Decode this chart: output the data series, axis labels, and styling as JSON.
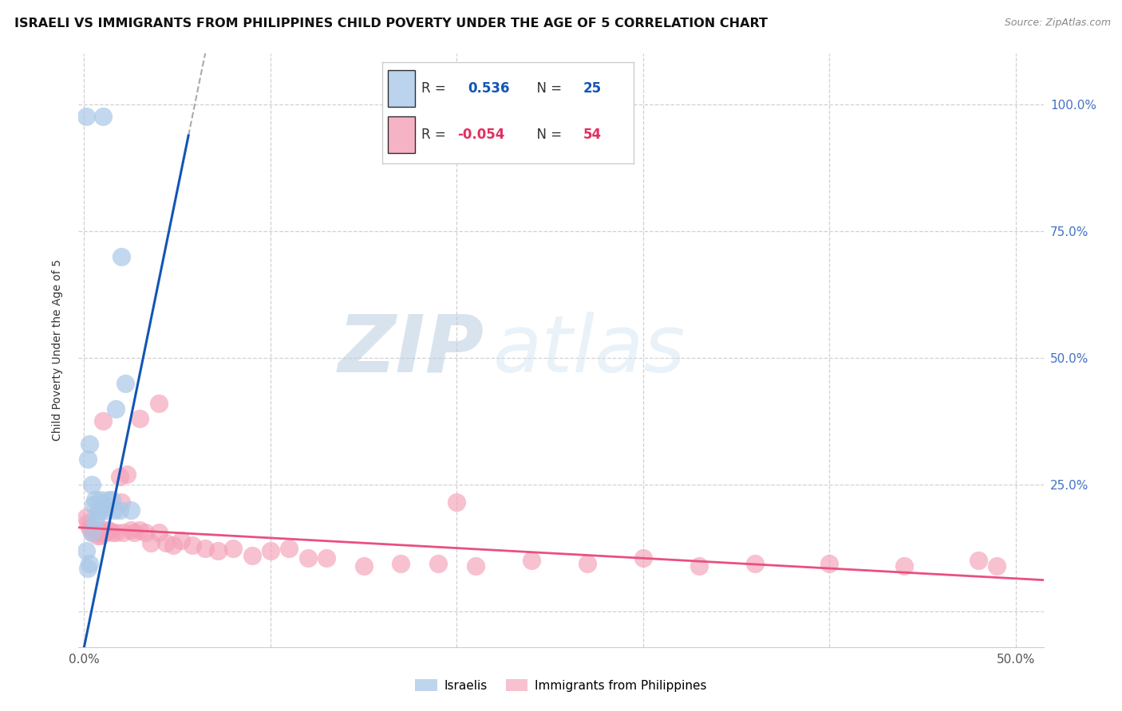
{
  "title": "ISRAELI VS IMMIGRANTS FROM PHILIPPINES CHILD POVERTY UNDER THE AGE OF 5 CORRELATION CHART",
  "source": "Source: ZipAtlas.com",
  "ylabel": "Child Poverty Under the Age of 5",
  "xlim": [
    -0.003,
    0.515
  ],
  "ylim": [
    -0.07,
    1.1
  ],
  "legend_blue_r": "0.536",
  "legend_blue_n": "25",
  "legend_pink_r": "-0.054",
  "legend_pink_n": "54",
  "israelis_x": [
    0.001,
    0.01,
    0.02,
    0.003,
    0.002,
    0.004,
    0.005,
    0.006,
    0.007,
    0.008,
    0.009,
    0.011,
    0.013,
    0.015,
    0.017,
    0.019,
    0.022,
    0.025,
    0.001,
    0.002,
    0.003,
    0.004,
    0.006,
    0.012,
    0.016
  ],
  "israelis_y": [
    0.975,
    0.975,
    0.7,
    0.33,
    0.3,
    0.25,
    0.21,
    0.22,
    0.19,
    0.2,
    0.22,
    0.21,
    0.22,
    0.22,
    0.4,
    0.2,
    0.45,
    0.2,
    0.12,
    0.085,
    0.095,
    0.155,
    0.18,
    0.2,
    0.2
  ],
  "philippines_x": [
    0.001,
    0.002,
    0.003,
    0.004,
    0.005,
    0.006,
    0.007,
    0.008,
    0.009,
    0.01,
    0.011,
    0.012,
    0.013,
    0.015,
    0.017,
    0.019,
    0.021,
    0.023,
    0.025,
    0.027,
    0.03,
    0.033,
    0.036,
    0.04,
    0.044,
    0.048,
    0.052,
    0.058,
    0.065,
    0.072,
    0.08,
    0.09,
    0.1,
    0.11,
    0.12,
    0.13,
    0.15,
    0.17,
    0.19,
    0.21,
    0.24,
    0.27,
    0.3,
    0.33,
    0.36,
    0.4,
    0.44,
    0.48,
    0.01,
    0.02,
    0.03,
    0.04,
    0.2,
    0.49
  ],
  "philippines_y": [
    0.185,
    0.175,
    0.165,
    0.155,
    0.16,
    0.155,
    0.15,
    0.16,
    0.15,
    0.155,
    0.155,
    0.16,
    0.16,
    0.155,
    0.155,
    0.265,
    0.155,
    0.27,
    0.16,
    0.155,
    0.16,
    0.155,
    0.135,
    0.155,
    0.135,
    0.13,
    0.14,
    0.13,
    0.125,
    0.12,
    0.125,
    0.11,
    0.12,
    0.125,
    0.105,
    0.105,
    0.09,
    0.095,
    0.095,
    0.09,
    0.1,
    0.095,
    0.105,
    0.09,
    0.095,
    0.095,
    0.09,
    0.1,
    0.375,
    0.215,
    0.38,
    0.41,
    0.215,
    0.09
  ],
  "blue_scatter_color": "#aac8e8",
  "pink_scatter_color": "#f4a0b8",
  "blue_line_color": "#1255b5",
  "pink_line_color": "#e85080",
  "bg_color": "#ffffff",
  "watermark_zip": "ZIP",
  "watermark_atlas": "atlas",
  "title_fontsize": 11.5,
  "source_fontsize": 9,
  "legend_blue_r_color": "#1255b5",
  "legend_blue_n_color": "#1255b5",
  "legend_pink_r_color": "#e03060",
  "legend_pink_n_color": "#e03060",
  "right_ytick_color": "#4472c4"
}
